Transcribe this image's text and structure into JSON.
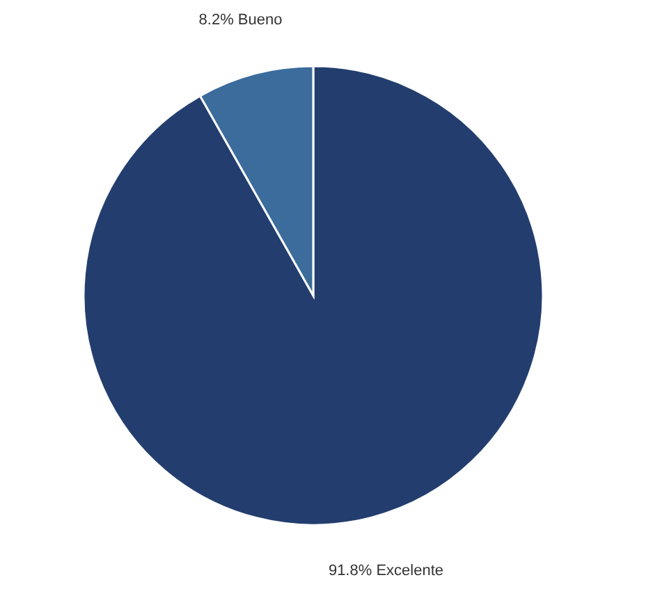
{
  "chart_data": {
    "type": "pie",
    "categories": [
      "Excelente",
      "Bueno"
    ],
    "values": [
      91.8,
      8.2
    ],
    "colors": [
      "#233e6e",
      "#3b6c9c"
    ],
    "value_labels": [
      "91.8%",
      "8.2%"
    ],
    "legend": false
  }
}
